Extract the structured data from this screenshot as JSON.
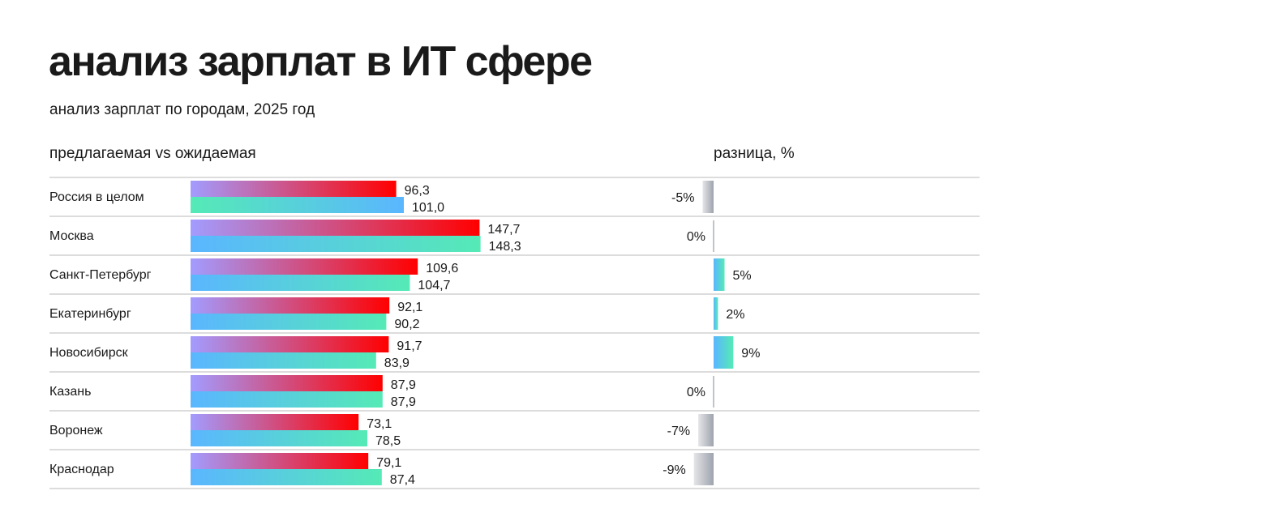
{
  "chart_data": {
    "type": "bar",
    "title": "анализ зарплат в ИТ сфере",
    "subtitle": "анализ зарплат по городам, 2025 год",
    "left_header": "предлагаемая vs ожидаемая",
    "right_header": "разница, %",
    "categories": [
      "Россия в целом",
      "Москва",
      "Санкт-Петербург",
      "Екатеринбург",
      "Новосибирск",
      "Казань",
      "Воронеж",
      "Краснодар"
    ],
    "series": [
      {
        "values": [
          96.3,
          147.7,
          109.6,
          92.1,
          91.7,
          87.9,
          73.1,
          79.1
        ],
        "labels": [
          "96,3",
          "147,7",
          "109,6",
          "92,1",
          "91,7",
          "87,9",
          "73,1",
          "79,1"
        ],
        "colors": [
          "#a29cff",
          "#ff0000"
        ]
      },
      {
        "values": [
          101.0,
          148.3,
          104.7,
          90.2,
          83.9,
          87.9,
          78.5,
          87.4
        ],
        "labels": [
          "101,0",
          "148,3",
          "104,7",
          "90,2",
          "83,9",
          "87,9",
          "78,5",
          "87,4"
        ],
        "colors": [
          "#5ab6ff",
          "#55eab6"
        ]
      }
    ],
    "difference": {
      "values": [
        -5,
        0,
        5,
        2,
        9,
        0,
        -7,
        -9
      ],
      "labels": [
        "-5%",
        "0%",
        "5%",
        "2%",
        "9%",
        "0%",
        "-7%",
        "-9%"
      ],
      "positive_colors": [
        "#5ab6ff",
        "#55eab6"
      ],
      "negative_colors": [
        "#e4e5e8",
        "#9ea3ad"
      ]
    },
    "grid": true,
    "legend": "none"
  }
}
